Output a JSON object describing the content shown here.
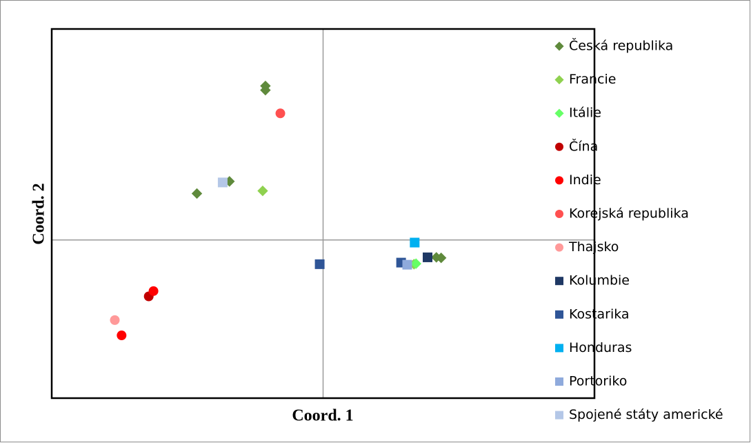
{
  "chart_data": {
    "type": "scatter",
    "x_label": "Coord. 1",
    "y_label": "Coord. 2",
    "xlim": [
      -4,
      4
    ],
    "ylim": [
      -3,
      4
    ],
    "legend": "right",
    "series": [
      {
        "name": "Česká republika",
        "color": "#5f8a3c",
        "marker": "diamond",
        "x": [
          -0.85,
          -0.85,
          -1.38,
          -1.86,
          1.67,
          1.74
        ],
        "values": [
          2.92,
          2.84,
          1.11,
          0.88,
          -0.33,
          -0.34
        ]
      },
      {
        "name": "Francie",
        "color": "#8fd14f",
        "marker": "diamond",
        "x": [
          -0.89,
          1.34
        ],
        "values": [
          0.93,
          -0.46
        ]
      },
      {
        "name": "Itálie",
        "color": "#66ff66",
        "marker": "diamond",
        "x": [
          1.37
        ],
        "values": [
          -0.45
        ]
      },
      {
        "name": "Čína",
        "color": "#c00000",
        "marker": "circle",
        "x": [
          -2.57
        ],
        "values": [
          -1.07
        ]
      },
      {
        "name": "Indie",
        "color": "#ff0000",
        "marker": "circle",
        "x": [
          -2.5,
          -2.97
        ],
        "values": [
          -0.97,
          -1.81
        ]
      },
      {
        "name": "Korejská republika",
        "color": "#ff5050",
        "marker": "circle",
        "x": [
          -0.63
        ],
        "values": [
          2.4
        ]
      },
      {
        "name": "Thajsko",
        "color": "#ff9999",
        "marker": "circle",
        "x": [
          -3.07
        ],
        "values": [
          -1.52
        ]
      },
      {
        "name": "Kolumbie",
        "color": "#1f3864",
        "marker": "square",
        "x": [
          1.54
        ],
        "values": [
          -0.33
        ]
      },
      {
        "name": "Kostarika",
        "color": "#2f5597",
        "marker": "square",
        "x": [
          -0.05,
          1.15
        ],
        "values": [
          -0.46,
          -0.43
        ]
      },
      {
        "name": "Honduras",
        "color": "#00b0f0",
        "marker": "square",
        "x": [
          1.35
        ],
        "values": [
          -0.05
        ]
      },
      {
        "name": "Portoriko",
        "color": "#8faadc",
        "marker": "square",
        "x": [
          1.24
        ],
        "values": [
          -0.47
        ]
      },
      {
        "name": "Spojené státy americké",
        "color": "#b4c7e7",
        "marker": "square",
        "x": [
          -1.48
        ],
        "values": [
          1.09
        ]
      }
    ]
  }
}
